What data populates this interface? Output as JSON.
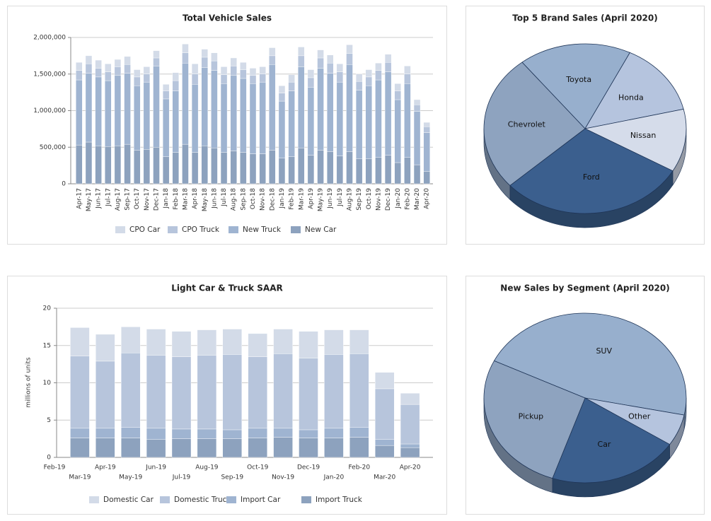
{
  "chart_data": [
    {
      "type": "bar",
      "stacked": true,
      "title": "Total Vehicle Sales",
      "categories": [
        "Apr-17",
        "May-17",
        "Jun-17",
        "Jul-17",
        "Aug-17",
        "Sep-17",
        "Oct-17",
        "Nov-17",
        "Dec-17",
        "Jan-18",
        "Feb-18",
        "Mar-18",
        "Apr-18",
        "May-18",
        "Jun-18",
        "Jul-18",
        "Aug-18",
        "Sep-18",
        "Oct-18",
        "Nov-18",
        "Dec-18",
        "Jan-19",
        "Feb-19",
        "Mar-19",
        "Apr-19",
        "May-19",
        "Jun-19",
        "Jul-19",
        "Aug-19",
        "Sep-19",
        "Oct-19",
        "Nov-19",
        "Dec-19",
        "Jan-20",
        "Feb-20",
        "Mar-20",
        "Apr-20"
      ],
      "series": [
        {
          "name": "CPO Car",
          "color": "#d3dbe8",
          "values": [
            110000,
            110000,
            110000,
            110000,
            100000,
            110000,
            100000,
            100000,
            100000,
            90000,
            110000,
            120000,
            140000,
            110000,
            110000,
            110000,
            110000,
            100000,
            100000,
            100000,
            110000,
            100000,
            100000,
            120000,
            110000,
            110000,
            110000,
            110000,
            120000,
            100000,
            100000,
            100000,
            110000,
            100000,
            110000,
            70000,
            60000
          ]
        },
        {
          "name": "CPO Truck",
          "color": "#b7c5dc",
          "values": [
            130000,
            130000,
            120000,
            120000,
            120000,
            120000,
            120000,
            110000,
            110000,
            110000,
            140000,
            140000,
            140000,
            140000,
            130000,
            120000,
            130000,
            120000,
            110000,
            110000,
            120000,
            110000,
            120000,
            150000,
            130000,
            140000,
            140000,
            140000,
            150000,
            120000,
            120000,
            130000,
            130000,
            120000,
            130000,
            90000,
            80000
          ]
        },
        {
          "name": "New Truck",
          "color": "#9fb4d1",
          "values": [
            890000,
            940000,
            940000,
            900000,
            960000,
            970000,
            880000,
            920000,
            1110000,
            790000,
            840000,
            1110000,
            930000,
            1070000,
            1060000,
            940000,
            1030000,
            1010000,
            960000,
            980000,
            1170000,
            780000,
            900000,
            1110000,
            930000,
            1120000,
            1070000,
            1010000,
            1190000,
            940000,
            1000000,
            1060000,
            1140000,
            860000,
            1010000,
            730000,
            530000
          ]
        },
        {
          "name": "New Car",
          "color": "#8da2be",
          "values": [
            530000,
            570000,
            520000,
            510000,
            520000,
            540000,
            460000,
            470000,
            500000,
            370000,
            430000,
            540000,
            430000,
            520000,
            490000,
            430000,
            450000,
            430000,
            410000,
            410000,
            460000,
            350000,
            370000,
            490000,
            390000,
            460000,
            440000,
            380000,
            440000,
            340000,
            340000,
            360000,
            390000,
            290000,
            360000,
            260000,
            170000
          ]
        }
      ],
      "ylim": [
        0,
        2000000
      ],
      "yticks": [
        0,
        {
          "value": 500000,
          "label": "500,000"
        },
        {
          "value": 1000000,
          "label": "1,000,000"
        },
        {
          "value": 1500000,
          "label": "1,500,000"
        },
        {
          "value": 2000000,
          "label": "2,000,000"
        }
      ],
      "grid": true,
      "legend": "bottom"
    },
    {
      "type": "pie",
      "three_d": true,
      "title": "Top 5 Brand Sales (April 2020)",
      "categories": [
        "Toyota",
        "Honda",
        "Nissan",
        "Ford",
        "Chevrolet"
      ],
      "values": [
        18,
        14,
        12,
        30,
        26
      ],
      "colors": [
        "#97afcd",
        "#b5c4de",
        "#d5dcea",
        "#3b5f8e",
        "#8ea3bf"
      ]
    },
    {
      "type": "bar",
      "stacked": true,
      "title": "Light Car & Truck SAAR",
      "y_label": "millions of units",
      "categories": [
        "Feb-19",
        "Mar-19",
        "Apr-19",
        "May-19",
        "Jun-19",
        "Jul-19",
        "Aug-19",
        "Sep-19",
        "Oct-19",
        "Nov-19",
        "Dec-19",
        "Jan-20",
        "Feb-20",
        "Mar-20",
        "Apr-20"
      ],
      "series": [
        {
          "name": "Domestic Car",
          "color": "#d3dbe8",
          "values": [
            null,
            3.8,
            3.6,
            3.5,
            3.5,
            3.4,
            3.4,
            3.4,
            3.1,
            3.3,
            3.6,
            3.3,
            3.2,
            2.2,
            1.5
          ]
        },
        {
          "name": "Domestic Truck",
          "color": "#b7c5dc",
          "values": [
            null,
            9.7,
            9.0,
            10.0,
            9.8,
            9.7,
            9.9,
            10.1,
            9.6,
            10.0,
            9.6,
            9.9,
            9.9,
            6.8,
            5.3
          ]
        },
        {
          "name": "Import Car",
          "color": "#9fb4d1",
          "values": [
            null,
            1.3,
            1.3,
            1.4,
            1.5,
            1.3,
            1.3,
            1.2,
            1.3,
            1.2,
            1.1,
            1.3,
            1.3,
            0.8,
            0.5
          ]
        },
        {
          "name": "Import Truck",
          "color": "#8da2be",
          "values": [
            null,
            2.6,
            2.6,
            2.6,
            2.4,
            2.5,
            2.5,
            2.5,
            2.6,
            2.7,
            2.6,
            2.6,
            2.7,
            1.6,
            1.3
          ]
        }
      ],
      "ylim": [
        0,
        20
      ],
      "yticks": [
        0,
        5,
        10,
        15,
        20
      ],
      "grid": true,
      "legend": "bottom"
    },
    {
      "type": "pie",
      "three_d": true,
      "title": "New Sales by Segment (April 2020)",
      "categories": [
        "SUV",
        "Other",
        "Car",
        "Pickup"
      ],
      "values": [
        46,
        6,
        21,
        27
      ],
      "colors": [
        "#97afcd",
        "#b5c4de",
        "#3b5f8e",
        "#8ea3bf"
      ]
    }
  ]
}
